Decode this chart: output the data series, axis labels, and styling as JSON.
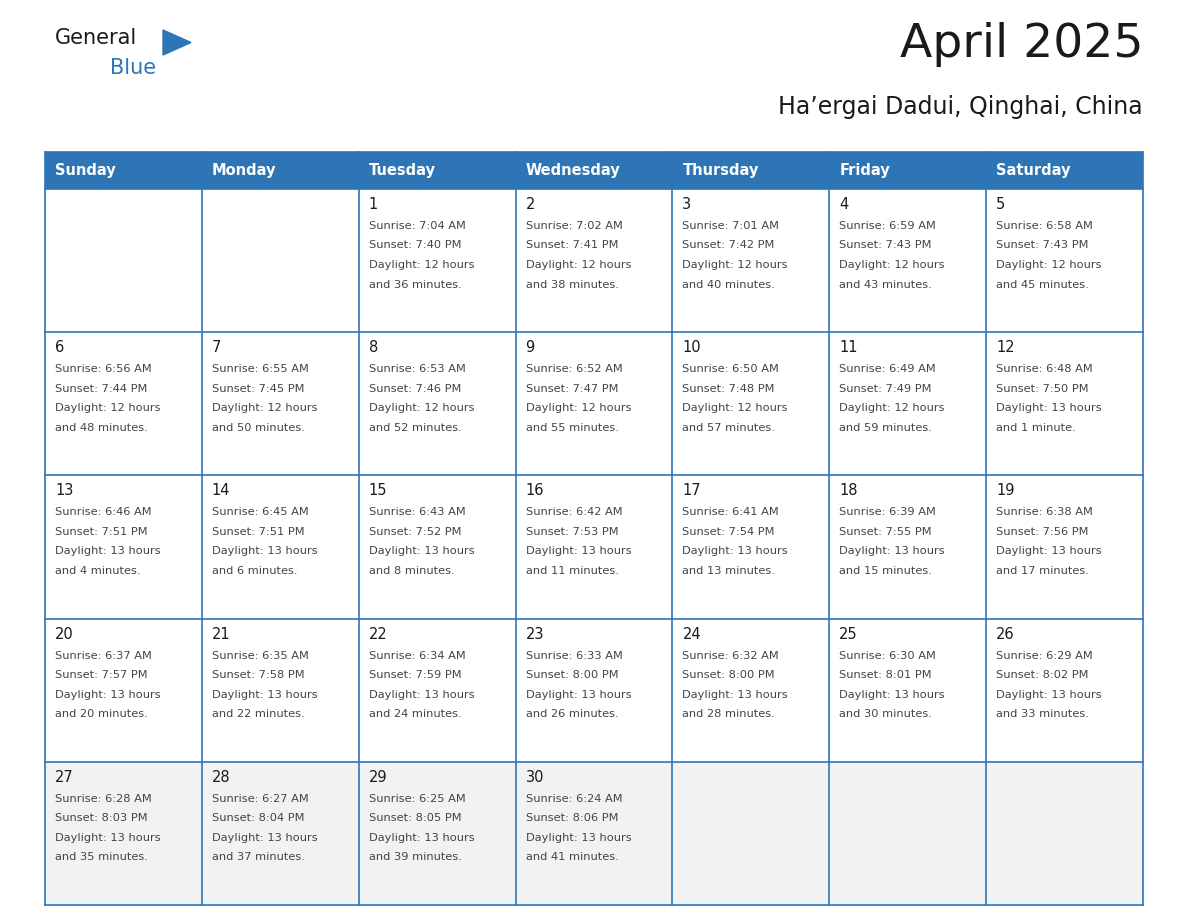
{
  "title": "April 2025",
  "subtitle": "Ha’ergai Dadui, Qinghai, China",
  "days_of_week": [
    "Sunday",
    "Monday",
    "Tuesday",
    "Wednesday",
    "Thursday",
    "Friday",
    "Saturday"
  ],
  "header_bg": "#2E75B6",
  "header_text": "#FFFFFF",
  "row_bg": [
    "#FFFFFF",
    "#FFFFFF",
    "#FFFFFF",
    "#FFFFFF",
    "#F2F2F2"
  ],
  "cell_border_color": "#2E75B6",
  "title_color": "#1a1a1a",
  "subtitle_color": "#1a1a1a",
  "day_number_color": "#1a1a1a",
  "cell_text_color": "#444444",
  "logo_general_color": "#1a1a1a",
  "logo_blue_color": "#2E75B6",
  "calendar": [
    [
      {
        "day": 0,
        "sunrise": "",
        "sunset": "",
        "daylight": ""
      },
      {
        "day": 0,
        "sunrise": "",
        "sunset": "",
        "daylight": ""
      },
      {
        "day": 1,
        "sunrise": "7:04 AM",
        "sunset": "7:40 PM",
        "daylight": "12 hours and 36 minutes."
      },
      {
        "day": 2,
        "sunrise": "7:02 AM",
        "sunset": "7:41 PM",
        "daylight": "12 hours and 38 minutes."
      },
      {
        "day": 3,
        "sunrise": "7:01 AM",
        "sunset": "7:42 PM",
        "daylight": "12 hours and 40 minutes."
      },
      {
        "day": 4,
        "sunrise": "6:59 AM",
        "sunset": "7:43 PM",
        "daylight": "12 hours and 43 minutes."
      },
      {
        "day": 5,
        "sunrise": "6:58 AM",
        "sunset": "7:43 PM",
        "daylight": "12 hours and 45 minutes."
      }
    ],
    [
      {
        "day": 6,
        "sunrise": "6:56 AM",
        "sunset": "7:44 PM",
        "daylight": "12 hours and 48 minutes."
      },
      {
        "day": 7,
        "sunrise": "6:55 AM",
        "sunset": "7:45 PM",
        "daylight": "12 hours and 50 minutes."
      },
      {
        "day": 8,
        "sunrise": "6:53 AM",
        "sunset": "7:46 PM",
        "daylight": "12 hours and 52 minutes."
      },
      {
        "day": 9,
        "sunrise": "6:52 AM",
        "sunset": "7:47 PM",
        "daylight": "12 hours and 55 minutes."
      },
      {
        "day": 10,
        "sunrise": "6:50 AM",
        "sunset": "7:48 PM",
        "daylight": "12 hours and 57 minutes."
      },
      {
        "day": 11,
        "sunrise": "6:49 AM",
        "sunset": "7:49 PM",
        "daylight": "12 hours and 59 minutes."
      },
      {
        "day": 12,
        "sunrise": "6:48 AM",
        "sunset": "7:50 PM",
        "daylight": "13 hours and 1 minute."
      }
    ],
    [
      {
        "day": 13,
        "sunrise": "6:46 AM",
        "sunset": "7:51 PM",
        "daylight": "13 hours and 4 minutes."
      },
      {
        "day": 14,
        "sunrise": "6:45 AM",
        "sunset": "7:51 PM",
        "daylight": "13 hours and 6 minutes."
      },
      {
        "day": 15,
        "sunrise": "6:43 AM",
        "sunset": "7:52 PM",
        "daylight": "13 hours and 8 minutes."
      },
      {
        "day": 16,
        "sunrise": "6:42 AM",
        "sunset": "7:53 PM",
        "daylight": "13 hours and 11 minutes."
      },
      {
        "day": 17,
        "sunrise": "6:41 AM",
        "sunset": "7:54 PM",
        "daylight": "13 hours and 13 minutes."
      },
      {
        "day": 18,
        "sunrise": "6:39 AM",
        "sunset": "7:55 PM",
        "daylight": "13 hours and 15 minutes."
      },
      {
        "day": 19,
        "sunrise": "6:38 AM",
        "sunset": "7:56 PM",
        "daylight": "13 hours and 17 minutes."
      }
    ],
    [
      {
        "day": 20,
        "sunrise": "6:37 AM",
        "sunset": "7:57 PM",
        "daylight": "13 hours and 20 minutes."
      },
      {
        "day": 21,
        "sunrise": "6:35 AM",
        "sunset": "7:58 PM",
        "daylight": "13 hours and 22 minutes."
      },
      {
        "day": 22,
        "sunrise": "6:34 AM",
        "sunset": "7:59 PM",
        "daylight": "13 hours and 24 minutes."
      },
      {
        "day": 23,
        "sunrise": "6:33 AM",
        "sunset": "8:00 PM",
        "daylight": "13 hours and 26 minutes."
      },
      {
        "day": 24,
        "sunrise": "6:32 AM",
        "sunset": "8:00 PM",
        "daylight": "13 hours and 28 minutes."
      },
      {
        "day": 25,
        "sunrise": "6:30 AM",
        "sunset": "8:01 PM",
        "daylight": "13 hours and 30 minutes."
      },
      {
        "day": 26,
        "sunrise": "6:29 AM",
        "sunset": "8:02 PM",
        "daylight": "13 hours and 33 minutes."
      }
    ],
    [
      {
        "day": 27,
        "sunrise": "6:28 AM",
        "sunset": "8:03 PM",
        "daylight": "13 hours and 35 minutes."
      },
      {
        "day": 28,
        "sunrise": "6:27 AM",
        "sunset": "8:04 PM",
        "daylight": "13 hours and 37 minutes."
      },
      {
        "day": 29,
        "sunrise": "6:25 AM",
        "sunset": "8:05 PM",
        "daylight": "13 hours and 39 minutes."
      },
      {
        "day": 30,
        "sunrise": "6:24 AM",
        "sunset": "8:06 PM",
        "daylight": "13 hours and 41 minutes."
      },
      {
        "day": 0,
        "sunrise": "",
        "sunset": "",
        "daylight": ""
      },
      {
        "day": 0,
        "sunrise": "",
        "sunset": "",
        "daylight": ""
      },
      {
        "day": 0,
        "sunrise": "",
        "sunset": "",
        "daylight": ""
      }
    ]
  ]
}
